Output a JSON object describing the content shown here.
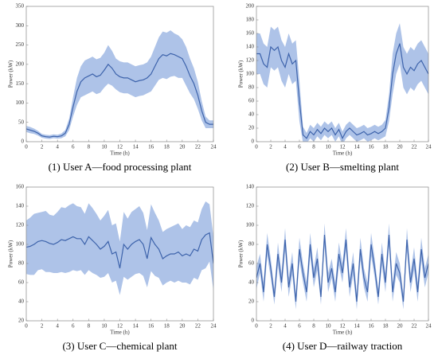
{
  "chart_data": [
    {
      "type": "line",
      "title": "(1) User A—food processing plant",
      "xlabel": "Time (h)",
      "ylabel": "Power (kW)",
      "x": [
        0,
        0.5,
        1,
        1.5,
        2,
        2.5,
        3,
        3.5,
        4,
        4.5,
        5,
        5.5,
        6,
        6.5,
        7,
        7.5,
        8,
        8.5,
        9,
        9.5,
        10,
        10.5,
        11,
        11.5,
        12,
        12.5,
        13,
        13.5,
        14,
        14.5,
        15,
        15.5,
        16,
        16.5,
        17,
        17.5,
        18,
        18.5,
        19,
        19.5,
        20,
        20.5,
        21,
        21.5,
        22,
        22.5,
        23,
        23.5,
        24
      ],
      "values": [
        33,
        30,
        27,
        22,
        15,
        13,
        12,
        14,
        13,
        15,
        22,
        45,
        90,
        130,
        155,
        165,
        170,
        175,
        168,
        172,
        185,
        200,
        190,
        175,
        168,
        165,
        165,
        160,
        155,
        158,
        160,
        165,
        175,
        195,
        215,
        225,
        222,
        228,
        225,
        220,
        215,
        195,
        170,
        150,
        120,
        80,
        50,
        45,
        45
      ],
      "errors": [
        8,
        8,
        7,
        6,
        5,
        5,
        5,
        5,
        5,
        6,
        8,
        15,
        25,
        35,
        40,
        45,
        45,
        45,
        45,
        45,
        45,
        50,
        45,
        40,
        40,
        40,
        40,
        40,
        40,
        40,
        40,
        40,
        45,
        50,
        55,
        60,
        60,
        60,
        55,
        55,
        50,
        50,
        45,
        40,
        35,
        25,
        15,
        10,
        10
      ],
      "color": "#3d63ab",
      "band_color": "#aec3e8",
      "xlim": [
        0,
        24
      ],
      "xticks": [
        0,
        2,
        4,
        6,
        8,
        10,
        12,
        14,
        16,
        18,
        20,
        22,
        24
      ],
      "ylim": [
        0,
        350
      ],
      "yticks": [
        0,
        50,
        100,
        150,
        200,
        250,
        300,
        350
      ]
    },
    {
      "type": "line",
      "title": "(2) User B—smelting plant",
      "xlabel": "Time (h)",
      "ylabel": "Power (kW)",
      "x": [
        0,
        0.5,
        1,
        1.5,
        2,
        2.5,
        3,
        3.5,
        4,
        4.5,
        5,
        5.5,
        6,
        6.5,
        7,
        7.5,
        8,
        8.5,
        9,
        9.5,
        10,
        10.5,
        11,
        11.5,
        12,
        12.5,
        13,
        13.5,
        14,
        14.5,
        15,
        15.5,
        16,
        16.5,
        17,
        17.5,
        18,
        18.5,
        19,
        19.5,
        20,
        20.5,
        21,
        21.5,
        22,
        22.5,
        23,
        23.5,
        24
      ],
      "values": [
        130,
        130,
        115,
        110,
        140,
        135,
        140,
        120,
        110,
        130,
        115,
        120,
        60,
        10,
        5,
        15,
        10,
        18,
        12,
        20,
        15,
        20,
        10,
        18,
        5,
        15,
        20,
        15,
        10,
        12,
        15,
        10,
        12,
        15,
        12,
        15,
        20,
        50,
        100,
        130,
        145,
        110,
        100,
        110,
        105,
        115,
        120,
        110,
        100
      ],
      "errors": [
        30,
        30,
        30,
        30,
        30,
        30,
        30,
        30,
        30,
        30,
        30,
        30,
        30,
        12,
        8,
        10,
        10,
        10,
        10,
        10,
        10,
        10,
        10,
        10,
        10,
        10,
        10,
        10,
        10,
        10,
        10,
        10,
        10,
        10,
        10,
        10,
        12,
        20,
        30,
        30,
        30,
        30,
        30,
        30,
        30,
        30,
        30,
        30,
        30
      ],
      "color": "#3d63ab",
      "band_color": "#aec3e8",
      "xlim": [
        0,
        24
      ],
      "xticks": [
        0,
        2,
        4,
        6,
        8,
        10,
        12,
        14,
        16,
        18,
        20,
        22,
        24
      ],
      "ylim": [
        0,
        200
      ],
      "yticks": [
        0,
        20,
        40,
        60,
        80,
        100,
        120,
        140,
        160,
        180,
        200
      ]
    },
    {
      "type": "line",
      "title": "(3) User C—chemical plant",
      "xlabel": "Time (h)",
      "ylabel": "Power (kW)",
      "x": [
        0,
        0.5,
        1,
        1.5,
        2,
        2.5,
        3,
        3.5,
        4,
        4.5,
        5,
        5.5,
        6,
        6.5,
        7,
        7.5,
        8,
        8.5,
        9,
        9.5,
        10,
        10.5,
        11,
        11.5,
        12,
        12.5,
        13,
        13.5,
        14,
        14.5,
        15,
        15.5,
        16,
        16.5,
        17,
        17.5,
        18,
        18.5,
        19,
        19.5,
        20,
        20.5,
        21,
        21.5,
        22,
        22.5,
        23,
        23.5,
        24
      ],
      "values": [
        97,
        98,
        100,
        103,
        104,
        103,
        101,
        100,
        102,
        105,
        104,
        106,
        108,
        106,
        106,
        100,
        108,
        104,
        100,
        95,
        98,
        103,
        90,
        92,
        75,
        100,
        95,
        100,
        103,
        105,
        100,
        85,
        107,
        100,
        95,
        85,
        88,
        90,
        90,
        92,
        88,
        90,
        88,
        95,
        93,
        105,
        110,
        112,
        80
      ],
      "errors": [
        28,
        30,
        32,
        30,
        30,
        32,
        30,
        30,
        32,
        34,
        34,
        35,
        35,
        34,
        33,
        32,
        35,
        34,
        32,
        30,
        32,
        33,
        30,
        30,
        28,
        34,
        32,
        34,
        34,
        35,
        33,
        30,
        35,
        33,
        30,
        28,
        28,
        28,
        30,
        30,
        28,
        30,
        30,
        30,
        30,
        32,
        35,
        30,
        28
      ],
      "color": "#3d63ab",
      "band_color": "#aec3e8",
      "xlim": [
        0,
        24
      ],
      "xticks": [
        0,
        2,
        4,
        6,
        8,
        10,
        12,
        14,
        16,
        18,
        20,
        22,
        24
      ],
      "ylim": [
        20,
        160
      ],
      "yticks": [
        20,
        40,
        60,
        80,
        100,
        120,
        140,
        160
      ]
    },
    {
      "type": "line",
      "title": "(4) User D—railway traction",
      "xlabel": "Time (h)",
      "ylabel": "Power (kW)",
      "x": [
        0,
        0.5,
        1,
        1.5,
        2,
        2.5,
        3,
        3.5,
        4,
        4.5,
        5,
        5.5,
        6,
        6.5,
        7,
        7.5,
        8,
        8.5,
        9,
        9.5,
        10,
        10.5,
        11,
        11.5,
        12,
        12.5,
        13,
        13.5,
        14,
        14.5,
        15,
        15.5,
        16,
        16.5,
        17,
        17.5,
        18,
        18.5,
        19,
        19.5,
        20,
        20.5,
        21,
        21.5,
        22,
        22.5,
        23,
        23.5,
        24
      ],
      "values": [
        45,
        60,
        30,
        80,
        55,
        25,
        70,
        40,
        85,
        35,
        60,
        20,
        75,
        50,
        30,
        80,
        45,
        65,
        25,
        90,
        40,
        55,
        30,
        70,
        50,
        85,
        35,
        60,
        20,
        75,
        45,
        30,
        80,
        55,
        25,
        70,
        40,
        90,
        30,
        60,
        50,
        20,
        85,
        40,
        65,
        30,
        75,
        45,
        60
      ],
      "errors": [
        12,
        10,
        10,
        12,
        10,
        8,
        12,
        10,
        12,
        10,
        12,
        8,
        12,
        10,
        10,
        12,
        10,
        12,
        8,
        12,
        10,
        10,
        10,
        12,
        10,
        12,
        10,
        12,
        8,
        12,
        10,
        10,
        12,
        10,
        8,
        12,
        10,
        12,
        10,
        12,
        10,
        8,
        12,
        10,
        12,
        10,
        12,
        10,
        10
      ],
      "color": "#3d63ab",
      "band_color": "#aec3e8",
      "xlim": [
        0,
        24
      ],
      "xticks": [
        0,
        2,
        4,
        6,
        8,
        10,
        12,
        14,
        16,
        18,
        20,
        22,
        24
      ],
      "ylim": [
        0,
        140
      ],
      "yticks": [
        0,
        20,
        40,
        60,
        80,
        100,
        120,
        140
      ]
    }
  ]
}
